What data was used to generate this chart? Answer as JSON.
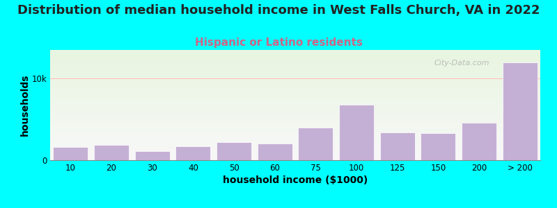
{
  "title": "Distribution of median household income in West Falls Church, VA in 2022",
  "subtitle": "Hispanic or Latino residents",
  "xlabel": "household income ($1000)",
  "ylabel": "households",
  "background_color": "#00FFFF",
  "plot_bg_gradient_top": "#e8f5e0",
  "plot_bg_gradient_bottom": "#f8f8f8",
  "bar_color": "#c5b0d5",
  "bar_edge_color": "#ffffff",
  "categories": [
    "10",
    "20",
    "30",
    "40",
    "50",
    "60",
    "75",
    "100",
    "125",
    "150",
    "200",
    "> 200"
  ],
  "values": [
    1600,
    1900,
    1100,
    1700,
    2200,
    2000,
    4000,
    6800,
    3400,
    3300,
    4600,
    12000
  ],
  "ylim": [
    0,
    13500
  ],
  "ytick_val": 10000,
  "ytick_label": "10k",
  "grid_color": "#ffb8b8",
  "watermark": "City-Data.com",
  "title_fontsize": 13,
  "subtitle_fontsize": 11,
  "subtitle_color": "#cc6688",
  "axis_label_fontsize": 10,
  "tick_fontsize": 8.5
}
